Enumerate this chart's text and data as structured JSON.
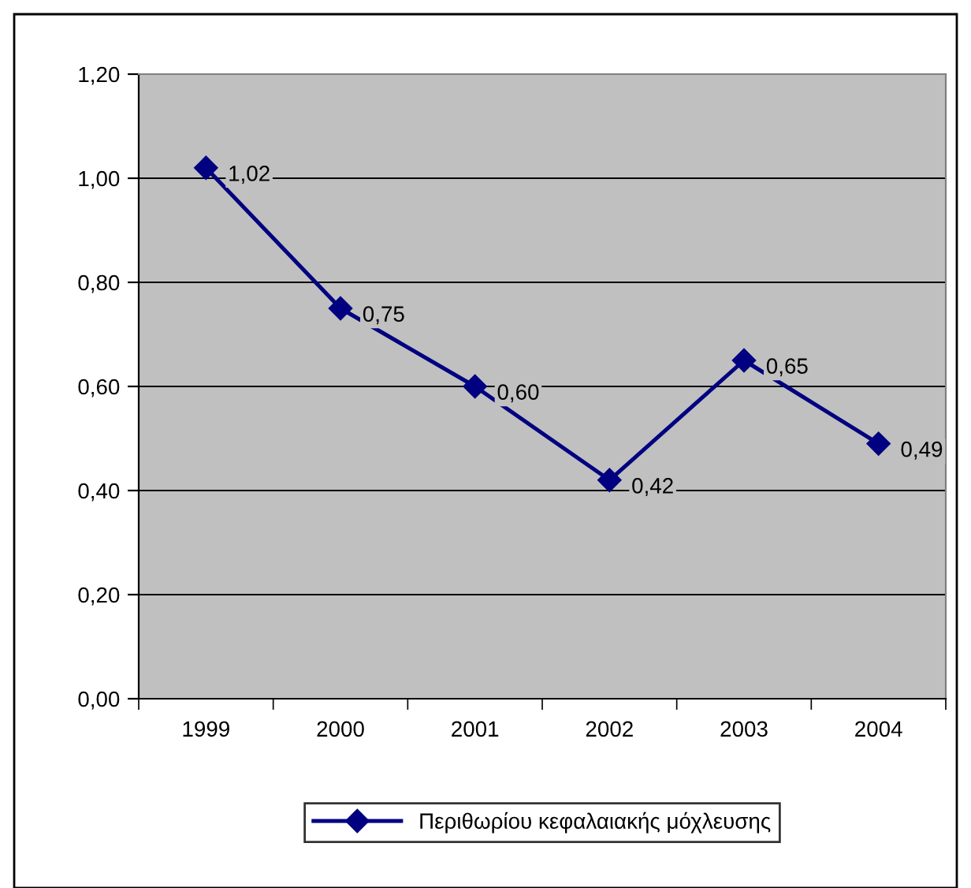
{
  "chart_data": {
    "type": "line",
    "categories": [
      "1999",
      "2000",
      "2001",
      "2002",
      "2003",
      "2004"
    ],
    "series": [
      {
        "name": "Περιθωρίου κεφαλαιακής μόχλευσης",
        "color": "#000080",
        "values": [
          1.02,
          0.75,
          0.6,
          0.42,
          0.65,
          0.49
        ],
        "value_labels": [
          "1,02",
          "0,75",
          "0,60",
          "0,42",
          "0,65",
          "0,49"
        ]
      }
    ],
    "ylim": [
      0,
      1.2
    ],
    "yticks": [
      {
        "value": 0,
        "label": "0,00"
      },
      {
        "value": 0.2,
        "label": "0,20"
      },
      {
        "value": 0.4,
        "label": "0,40"
      },
      {
        "value": 0.6,
        "label": "0,60"
      },
      {
        "value": 0.8,
        "label": "0,80"
      },
      {
        "value": 1.0,
        "label": "1,00"
      },
      {
        "value": 1.2,
        "label": "1,20"
      }
    ],
    "grid": "y",
    "legend": "bottom",
    "marker": "diamond",
    "line_style": "solid"
  }
}
